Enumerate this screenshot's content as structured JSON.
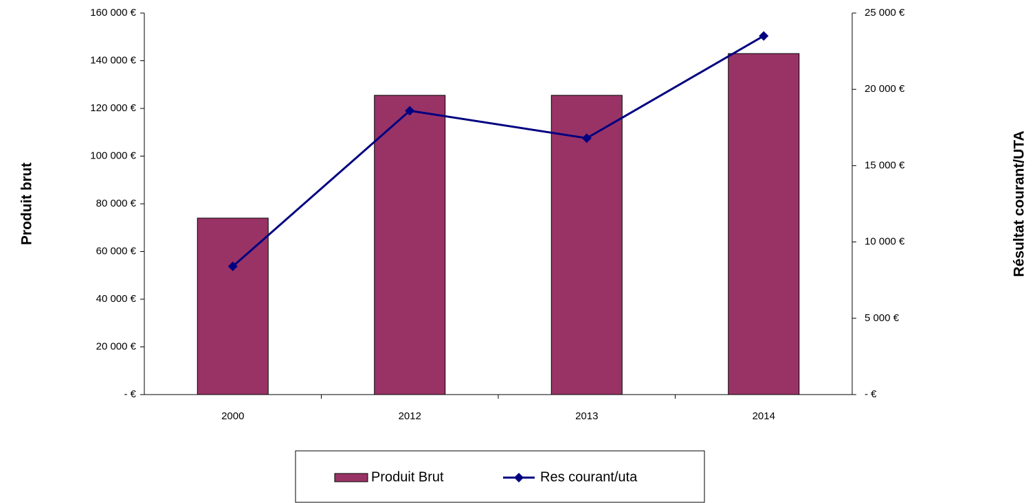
{
  "chart_data": {
    "type": "bar",
    "categories": [
      "2000",
      "2012",
      "2013",
      "2014"
    ],
    "series": [
      {
        "name": "Produit Brut",
        "type": "bar",
        "color": "#993366",
        "values": [
          74000,
          125500,
          125500,
          143000
        ]
      },
      {
        "name": "Res courant/uta",
        "type": "line",
        "axis": "y2",
        "color": "#000080",
        "values": [
          8400,
          18600,
          16800,
          23500
        ]
      }
    ],
    "ylabel": "Produit brut",
    "y2label": "Résultat courant/UTA",
    "ylim": [
      0,
      160000
    ],
    "yticks": [
      {
        "value": 0,
        "label": "-  €"
      },
      {
        "value": 20000,
        "label": "20 000 €"
      },
      {
        "value": 40000,
        "label": "40 000 €"
      },
      {
        "value": 60000,
        "label": "60 000 €"
      },
      {
        "value": 80000,
        "label": "80 000 €"
      },
      {
        "value": 100000,
        "label": "100 000 €"
      },
      {
        "value": 120000,
        "label": "120 000 €"
      },
      {
        "value": 140000,
        "label": "140 000 €"
      },
      {
        "value": 160000,
        "label": "160 000 €"
      }
    ],
    "y2lim": [
      0,
      25000
    ],
    "y2ticks": [
      {
        "value": 0,
        "label": "-  €"
      },
      {
        "value": 5000,
        "label": "5 000 €"
      },
      {
        "value": 10000,
        "label": "10 000 €"
      },
      {
        "value": 15000,
        "label": "15 000 €"
      },
      {
        "value": 20000,
        "label": "20 000 €"
      },
      {
        "value": 25000,
        "label": "25 000 €"
      }
    ],
    "grid": false,
    "legend": "bottom"
  }
}
